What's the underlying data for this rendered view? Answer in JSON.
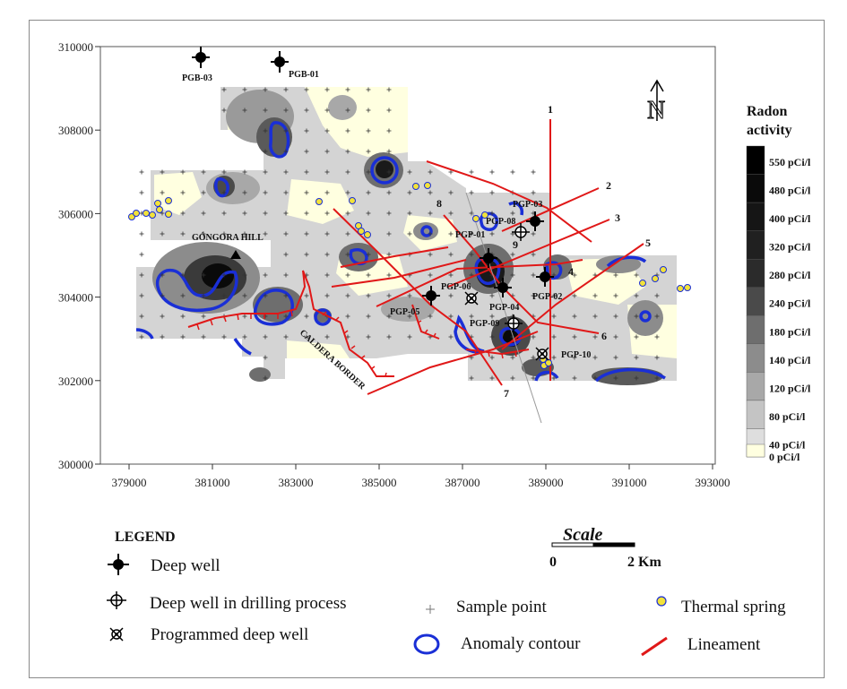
{
  "map": {
    "x_ticks": [
      "379000",
      "381000",
      "383000",
      "385000",
      "387000",
      "389000",
      "391000",
      "393000"
    ],
    "y_ticks": [
      "310000",
      "308000",
      "306000",
      "304000",
      "302000",
      "300000"
    ],
    "place_label": "GÓNGORA HILL",
    "caldera_label": "CALDERA BORDER",
    "north_symbol": "N",
    "wells": {
      "pgb03": "PGB-03",
      "pgb01": "PGB-01",
      "pgp03": "PGP-03",
      "pgp08": "PGP-08",
      "pgp01": "PGP-01",
      "pgp02": "PGP-02",
      "pgp04": "PGP-04",
      "pgp05": "PGP-05",
      "pgp06": "PGP-06",
      "pgp09": "PGP-09",
      "pgp10": "PGP-10"
    },
    "lineament_numbers": [
      "1",
      "2",
      "3",
      "4",
      "5",
      "6",
      "7",
      "8",
      "9"
    ]
  },
  "colorbar": {
    "title_line1": "Radon",
    "title_line2": "activity",
    "labels": [
      "550 pCi/l",
      "480 pCi/l",
      "400 pCi/l",
      "320 pCi/l",
      "280 pCi/l",
      "240 pCi/l",
      "180 pCi/l",
      "140 pCi/l",
      "120 pCi/l",
      "80 pCi/l",
      "40 pCi/l",
      "0 pCi/l"
    ],
    "colors": [
      "#000000",
      "#0a0a0a",
      "#151515",
      "#202020",
      "#2b2b2b",
      "#4a4a4a",
      "#6e6e6e",
      "#8c8c8c",
      "#a8a8a8",
      "#c4c4c4",
      "#dedede",
      "#ffffe0"
    ]
  },
  "scale": {
    "title": "Scale",
    "start": "0",
    "end": "2 Km"
  },
  "legend": {
    "title": "LEGEND",
    "deep_well": "Deep well",
    "drilling_well": "Deep well in drilling process",
    "programmed_well": "Programmed deep well",
    "sample_point": "Sample point",
    "anomaly_contour": "Anomaly contour",
    "thermal_spring": "Thermal spring",
    "lineament": "Lineament",
    "colors": {
      "anomaly": "#1a2fd6",
      "lineament": "#e01818",
      "spring": "#f2e23a"
    }
  }
}
